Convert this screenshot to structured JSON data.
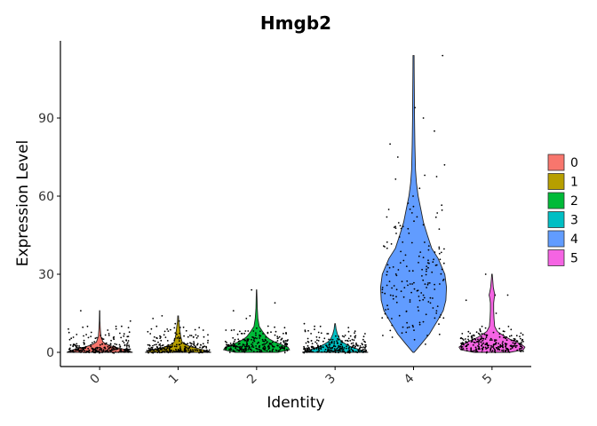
{
  "chart_data": {
    "type": "violin",
    "title": "Hmgb2",
    "xlabel": "Identity",
    "ylabel": "Expression Level",
    "ylim": [
      -5,
      115
    ],
    "yticks": [
      0,
      30,
      60,
      90
    ],
    "legend_position": "right",
    "legend_title": "",
    "grid": false,
    "categories": [
      "0",
      "1",
      "2",
      "3",
      "4",
      "5"
    ],
    "colors": [
      "#F8766D",
      "#B79F00",
      "#00BA38",
      "#00BFC4",
      "#619CFF",
      "#F564E3"
    ],
    "groups": [
      {
        "label": "0",
        "max": 16,
        "density": [
          [
            0,
            1.0
          ],
          [
            1,
            0.8
          ],
          [
            2,
            0.45
          ],
          [
            3,
            0.22
          ],
          [
            4,
            0.1
          ],
          [
            6,
            0.04
          ],
          [
            9,
            0.02
          ],
          [
            12,
            0.01
          ],
          [
            16,
            0.005
          ]
        ],
        "outliers": [
          16,
          12,
          10,
          9
        ]
      },
      {
        "label": "1",
        "max": 14,
        "density": [
          [
            0,
            1.0
          ],
          [
            1,
            0.75
          ],
          [
            2,
            0.42
          ],
          [
            3,
            0.22
          ],
          [
            4,
            0.12
          ],
          [
            6,
            0.08
          ],
          [
            8,
            0.06
          ],
          [
            10,
            0.04
          ],
          [
            12,
            0.02
          ],
          [
            14,
            0.01
          ]
        ],
        "outliers": [
          14,
          13,
          12,
          11,
          10
        ]
      },
      {
        "label": "2",
        "max": 24,
        "density": [
          [
            0,
            0.65
          ],
          [
            1,
            1.0
          ],
          [
            2,
            0.95
          ],
          [
            3,
            0.75
          ],
          [
            4,
            0.55
          ],
          [
            5,
            0.4
          ],
          [
            6,
            0.3
          ],
          [
            8,
            0.18
          ],
          [
            10,
            0.08
          ],
          [
            13,
            0.04
          ],
          [
            17,
            0.02
          ],
          [
            20,
            0.015
          ],
          [
            24,
            0.005
          ]
        ],
        "outliers": [
          24,
          19,
          16,
          14,
          13
        ]
      },
      {
        "label": "3",
        "max": 11,
        "density": [
          [
            0,
            1.0
          ],
          [
            1,
            0.75
          ],
          [
            2,
            0.5
          ],
          [
            3,
            0.35
          ],
          [
            4,
            0.22
          ],
          [
            5,
            0.14
          ],
          [
            7,
            0.07
          ],
          [
            9,
            0.03
          ],
          [
            11,
            0.01
          ]
        ],
        "outliers": [
          11,
          10,
          8
        ]
      },
      {
        "label": "4",
        "max": 114,
        "density": [
          [
            0,
            0.02
          ],
          [
            3,
            0.22
          ],
          [
            7,
            0.48
          ],
          [
            12,
            0.72
          ],
          [
            16,
            0.9
          ],
          [
            20,
            0.98
          ],
          [
            25,
            1.0
          ],
          [
            30,
            0.95
          ],
          [
            36,
            0.75
          ],
          [
            40,
            0.55
          ],
          [
            45,
            0.42
          ],
          [
            50,
            0.3
          ],
          [
            55,
            0.22
          ],
          [
            60,
            0.14
          ],
          [
            65,
            0.09
          ],
          [
            70,
            0.06
          ],
          [
            80,
            0.04
          ],
          [
            90,
            0.03
          ],
          [
            100,
            0.025
          ],
          [
            108,
            0.02
          ],
          [
            114,
            0.015
          ]
        ],
        "outliers": [
          114,
          94,
          90,
          85,
          80,
          75,
          72,
          68,
          63,
          60,
          56,
          52,
          49
        ]
      },
      {
        "label": "5",
        "max": 30,
        "density": [
          [
            0,
            0.55
          ],
          [
            1,
            0.95
          ],
          [
            2,
            1.0
          ],
          [
            3,
            0.9
          ],
          [
            4,
            0.75
          ],
          [
            5,
            0.55
          ],
          [
            6,
            0.4
          ],
          [
            7,
            0.28
          ],
          [
            8,
            0.16
          ],
          [
            10,
            0.08
          ],
          [
            13,
            0.06
          ],
          [
            16,
            0.05
          ],
          [
            19,
            0.05
          ],
          [
            21,
            0.07
          ],
          [
            22,
            0.09
          ],
          [
            23,
            0.07
          ],
          [
            25,
            0.04
          ],
          [
            28,
            0.02
          ],
          [
            30,
            0.008
          ]
        ],
        "outliers": [
          30,
          22,
          22,
          20,
          15
        ]
      }
    ]
  }
}
